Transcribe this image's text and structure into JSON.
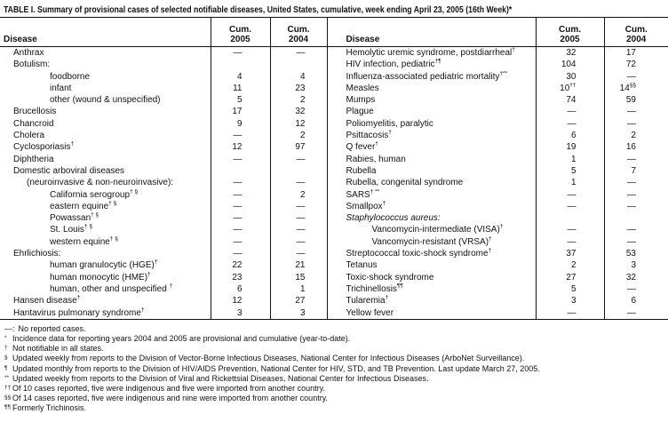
{
  "title": "TABLE I. Summary of provisional cases of selected notifiable diseases, United States, cumulative, week ending April 23, 2005 (16th Week)*",
  "table": {
    "header": {
      "disease": "Disease",
      "cum": "Cum.",
      "y2005": "2005",
      "y2004": "2004"
    },
    "rows": [
      {
        "left": {
          "label": "Anthrax",
          "v2005": "—",
          "v2004": "—"
        },
        "right": {
          "label": "Hemolytic uremic syndrome, postdiarrheal",
          "sup": "†",
          "v2005": "32",
          "v2004": "17"
        }
      },
      {
        "left": {
          "label": "Botulism:",
          "v2005": "",
          "v2004": ""
        },
        "right": {
          "label": "HIV infection, pediatric",
          "sup": "†¶",
          "v2005": "104",
          "v2004": "72"
        }
      },
      {
        "left": {
          "label": "foodborne",
          "ind": 2,
          "v2005": "4",
          "v2004": "4"
        },
        "right": {
          "label": "Influenza-associated pediatric mortality",
          "sup": "†**",
          "v2005": "30",
          "v2004": "—"
        }
      },
      {
        "left": {
          "label": "infant",
          "ind": 2,
          "v2005": "11",
          "v2004": "23"
        },
        "right": {
          "label": "Measles",
          "v2005": "10",
          "v2005_sup": "††",
          "v2004": "14",
          "v2004_sup": "§§"
        }
      },
      {
        "left": {
          "label": "other (wound & unspecified)",
          "ind": 2,
          "v2005": "5",
          "v2004": "2"
        },
        "right": {
          "label": "Mumps",
          "v2005": "74",
          "v2004": "59"
        }
      },
      {
        "left": {
          "label": "Brucellosis",
          "v2005": "17",
          "v2004": "32"
        },
        "right": {
          "label": "Plague",
          "v2005": "—",
          "v2004": "—"
        }
      },
      {
        "left": {
          "label": "Chancroid",
          "v2005": "9",
          "v2004": "12"
        },
        "right": {
          "label": "Poliomyelitis, paralytic",
          "v2005": "—",
          "v2004": "—"
        }
      },
      {
        "left": {
          "label": "Cholera",
          "v2005": "—",
          "v2004": "2"
        },
        "right": {
          "label": "Psittacosis",
          "sup": "†",
          "v2005": "6",
          "v2004": "2"
        }
      },
      {
        "left": {
          "label": "Cyclosporiasis",
          "sup": "†",
          "v2005": "12",
          "v2004": "97"
        },
        "right": {
          "label": "Q fever",
          "sup": "†",
          "v2005": "19",
          "v2004": "16"
        }
      },
      {
        "left": {
          "label": "Diphtheria",
          "v2005": "—",
          "v2004": "—"
        },
        "right": {
          "label": "Rabies, human",
          "v2005": "1",
          "v2004": "—"
        }
      },
      {
        "left": {
          "label": "Domestic arboviral diseases",
          "v2005": "",
          "v2004": ""
        },
        "right": {
          "label": "Rubella",
          "v2005": "5",
          "v2004": "7"
        }
      },
      {
        "left": {
          "label": "(neuroinvasive & non-neuroinvasive):",
          "ind": 1,
          "v2005": "—",
          "v2004": "—"
        },
        "right": {
          "label": "Rubella, congenital syndrome",
          "v2005": "1",
          "v2004": "—"
        }
      },
      {
        "left": {
          "label": "California serogroup",
          "sup": "† §",
          "ind": 2,
          "v2005": "—",
          "v2004": "2"
        },
        "right": {
          "label": "SARS",
          "sup": "† **",
          "v2005": "—",
          "v2004": "—"
        }
      },
      {
        "left": {
          "label": "eastern equine",
          "sup": "† §",
          "ind": 2,
          "v2005": "—",
          "v2004": "—"
        },
        "right": {
          "label": "Smallpox",
          "sup": "†",
          "v2005": "—",
          "v2004": "—"
        }
      },
      {
        "left": {
          "label": "Powassan",
          "sup": "† §",
          "ind": 2,
          "v2005": "—",
          "v2004": "—"
        },
        "right": {
          "label": "Staphylococcus aureus:",
          "em": true,
          "v2005": "",
          "v2004": ""
        }
      },
      {
        "left": {
          "label": "St. Louis",
          "sup": "† §",
          "ind": 2,
          "v2005": "—",
          "v2004": "—"
        },
        "right": {
          "label": "Vancomycin-intermediate (VISA)",
          "sup": "†",
          "ind": 2,
          "v2005": "—",
          "v2004": "—"
        }
      },
      {
        "left": {
          "label": "western equine",
          "sup": "† §",
          "ind": 2,
          "v2005": "—",
          "v2004": "—"
        },
        "right": {
          "label": "Vancomycin-resistant (VRSA)",
          "sup": "†",
          "ind": 2,
          "v2005": "—",
          "v2004": "—"
        }
      },
      {
        "left": {
          "label": "Ehrlichiosis:",
          "v2005": "—",
          "v2004": "—"
        },
        "right": {
          "label": "Streptococcal toxic-shock syndrome",
          "sup": "†",
          "v2005": "37",
          "v2004": "53"
        }
      },
      {
        "left": {
          "label": "human granulocytic (HGE)",
          "sup": "†",
          "ind": 2,
          "v2005": "22",
          "v2004": "21"
        },
        "right": {
          "label": "Tetanus",
          "v2005": "2",
          "v2004": "3"
        }
      },
      {
        "left": {
          "label": "human monocytic (HME)",
          "sup": "†",
          "ind": 2,
          "v2005": "23",
          "v2004": "15"
        },
        "right": {
          "label": "Toxic-shock syndrome",
          "v2005": "27",
          "v2004": "32"
        }
      },
      {
        "left": {
          "label": "human, other and unspecified ",
          "sup": "†",
          "ind": 2,
          "v2005": "6",
          "v2004": "1"
        },
        "right": {
          "label": "Trichinellosis",
          "sup": "¶¶",
          "v2005": "5",
          "v2004": "—"
        }
      },
      {
        "left": {
          "label": "Hansen disease",
          "sup": "†",
          "v2005": "12",
          "v2004": "27"
        },
        "right": {
          "label": "Tularemia",
          "sup": "†",
          "v2005": "3",
          "v2004": "6"
        }
      },
      {
        "left": {
          "label": "Hantavirus pulmonary syndrome",
          "sup": "†",
          "v2005": "3",
          "v2004": "3"
        },
        "right": {
          "label": "Yellow fever",
          "v2005": "—",
          "v2004": "—"
        }
      }
    ]
  },
  "footnotes": [
    {
      "sym": "—:",
      "plain": true,
      "text": "No reported cases."
    },
    {
      "sym": "*",
      "text": "Incidence data for reporting years 2004 and 2005 are provisional and cumulative (year-to-date)."
    },
    {
      "sym": "†",
      "text": "Not notifiable in all states."
    },
    {
      "sym": "§",
      "text": "Updated weekly from reports to the Division of Vector-Borne Infectious Diseases, National Center for Infectious Diseases (ArboNet Surveillance)."
    },
    {
      "sym": "¶",
      "text": "Updated monthly from reports to the Division of HIV/AIDS Prevention, National Center for HIV, STD, and TB Prevention. Last update March 27, 2005."
    },
    {
      "sym": "**",
      "text": "Updated weekly from reports to the Division of Viral and Rickettsial Diseases, National Center for Infectious Diseases."
    },
    {
      "sym": "††",
      "text": "Of 10 cases reported, five were indigenous and five were imported from another country."
    },
    {
      "sym": "§§",
      "text": "Of 14 cases reported, five were indigenous and nine were imported from another country."
    },
    {
      "sym": "¶¶",
      "text": "Formerly Trichinosis."
    }
  ]
}
